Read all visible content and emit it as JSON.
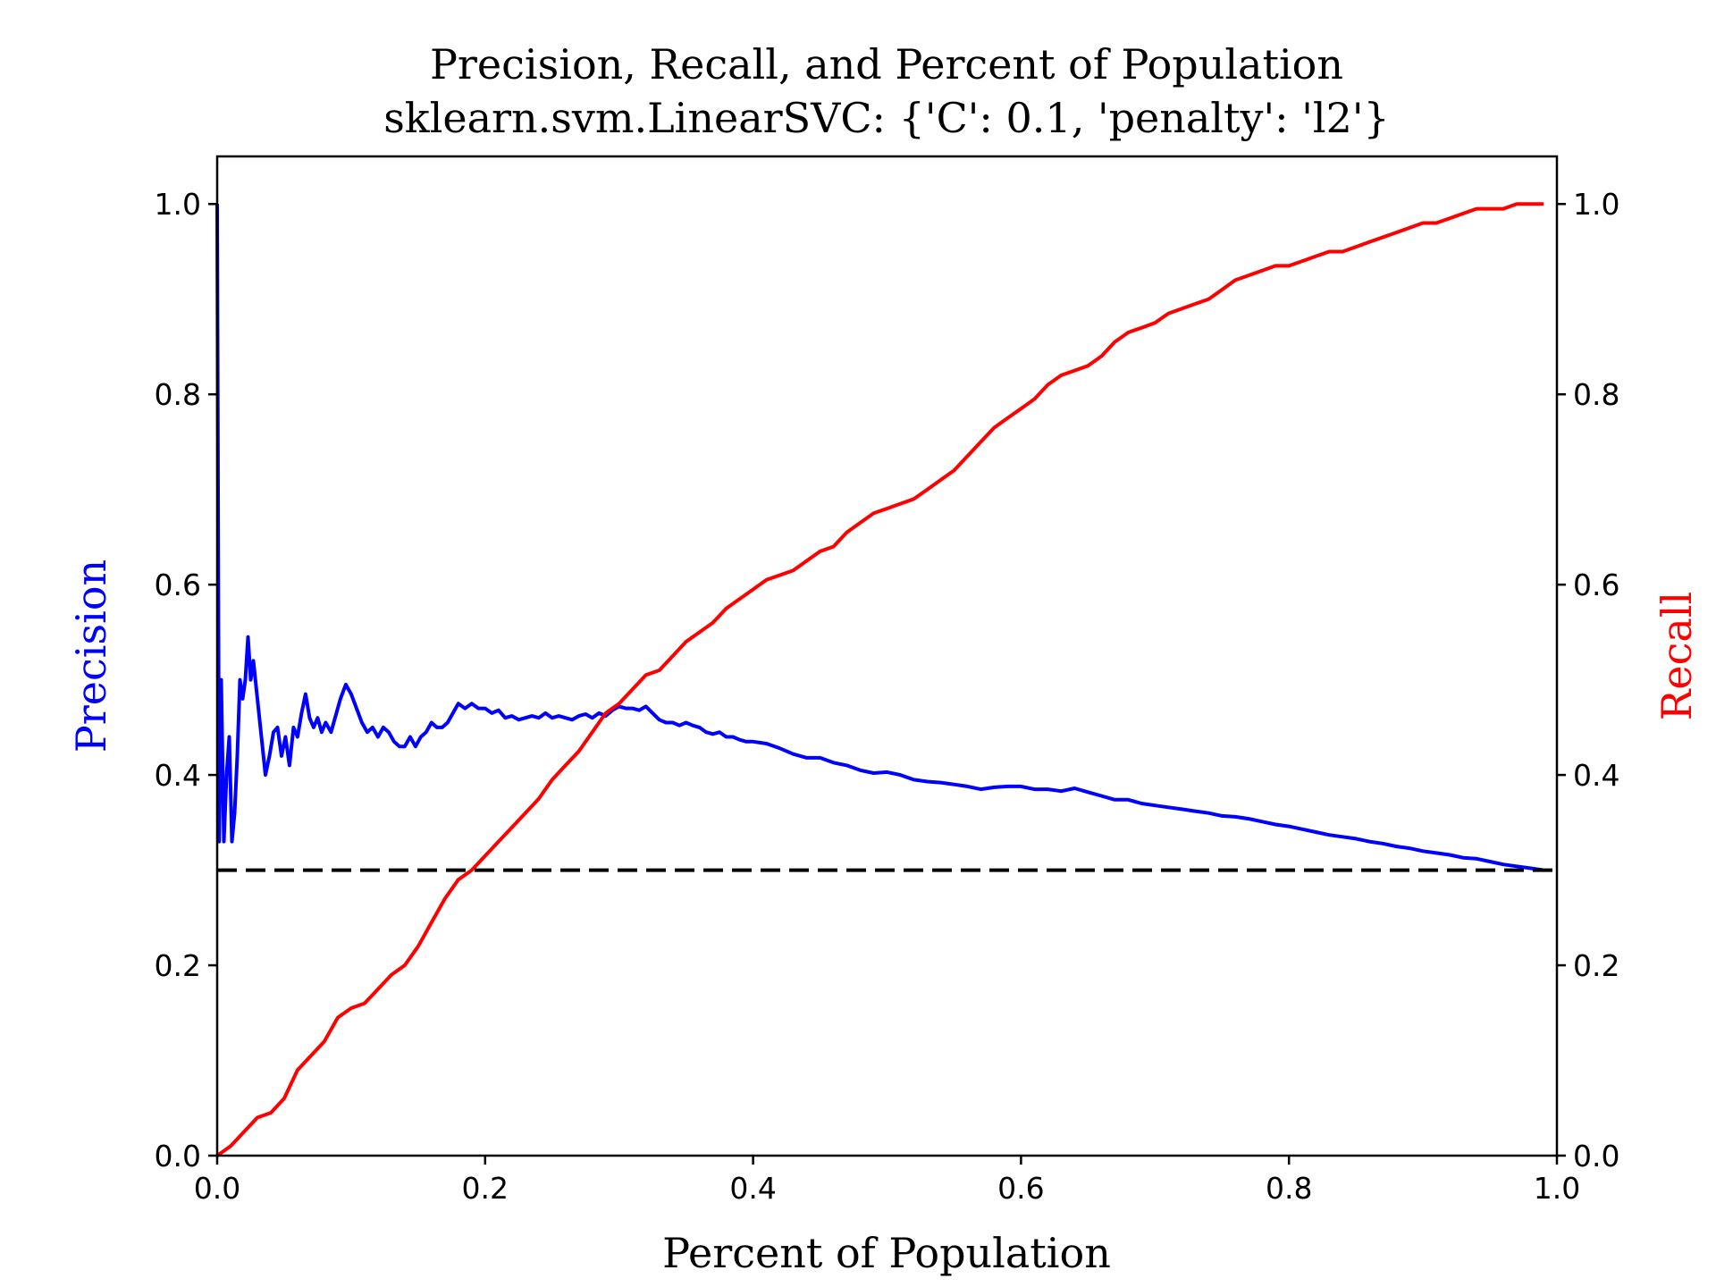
{
  "chart_data": {
    "type": "line",
    "title": "Precision, Recall, and Percent of Population",
    "subtitle": "sklearn.svm.LinearSVC: {'C': 0.1, 'penalty': 'l2'}",
    "xlabel": "Percent of Population",
    "ylabel_left": "Precision",
    "ylabel_right": "Recall",
    "xlim": [
      0,
      1
    ],
    "ylim_left": [
      0,
      1.05
    ],
    "ylim_right": [
      0,
      1.05
    ],
    "x_ticks": [
      "0.0",
      "0.2",
      "0.4",
      "0.6",
      "0.8",
      "1.0"
    ],
    "y_ticks_left": [
      "0.0",
      "0.2",
      "0.4",
      "0.6",
      "0.8",
      "1.0"
    ],
    "y_ticks_right": [
      "0.0",
      "0.2",
      "0.4",
      "0.6",
      "0.8",
      "1.0"
    ],
    "grid": false,
    "colors": {
      "precision": "#0000ff",
      "recall": "#ff0000",
      "baseline": "#000000",
      "axes": "#000000"
    },
    "series": [
      {
        "axis": "left",
        "points": [
          [
            0.0,
            1.0
          ],
          [
            0.0015,
            0.33
          ],
          [
            0.003,
            0.5
          ],
          [
            0.005,
            0.33
          ],
          [
            0.007,
            0.4
          ],
          [
            0.009,
            0.44
          ],
          [
            0.011,
            0.33
          ],
          [
            0.013,
            0.36
          ],
          [
            0.015,
            0.42
          ],
          [
            0.017,
            0.5
          ],
          [
            0.019,
            0.48
          ],
          [
            0.021,
            0.5
          ],
          [
            0.023,
            0.545
          ],
          [
            0.025,
            0.5
          ],
          [
            0.027,
            0.52
          ],
          [
            0.03,
            0.48
          ],
          [
            0.033,
            0.44
          ],
          [
            0.036,
            0.4
          ],
          [
            0.039,
            0.42
          ],
          [
            0.042,
            0.445
          ],
          [
            0.045,
            0.45
          ],
          [
            0.048,
            0.42
          ],
          [
            0.051,
            0.44
          ],
          [
            0.054,
            0.41
          ],
          [
            0.057,
            0.45
          ],
          [
            0.06,
            0.44
          ],
          [
            0.063,
            0.465
          ],
          [
            0.066,
            0.485
          ],
          [
            0.069,
            0.46
          ],
          [
            0.072,
            0.45
          ],
          [
            0.075,
            0.46
          ],
          [
            0.078,
            0.445
          ],
          [
            0.081,
            0.455
          ],
          [
            0.085,
            0.445
          ],
          [
            0.088,
            0.46
          ],
          [
            0.092,
            0.48
          ],
          [
            0.096,
            0.495
          ],
          [
            0.1,
            0.485
          ],
          [
            0.104,
            0.47
          ],
          [
            0.108,
            0.455
          ],
          [
            0.112,
            0.445
          ],
          [
            0.116,
            0.45
          ],
          [
            0.12,
            0.44
          ],
          [
            0.124,
            0.45
          ],
          [
            0.128,
            0.445
          ],
          [
            0.132,
            0.435
          ],
          [
            0.136,
            0.43
          ],
          [
            0.14,
            0.43
          ],
          [
            0.144,
            0.44
          ],
          [
            0.148,
            0.43
          ],
          [
            0.152,
            0.44
          ],
          [
            0.156,
            0.445
          ],
          [
            0.16,
            0.455
          ],
          [
            0.164,
            0.45
          ],
          [
            0.168,
            0.45
          ],
          [
            0.172,
            0.455
          ],
          [
            0.176,
            0.465
          ],
          [
            0.18,
            0.475
          ],
          [
            0.185,
            0.47
          ],
          [
            0.19,
            0.475
          ],
          [
            0.195,
            0.47
          ],
          [
            0.2,
            0.47
          ],
          [
            0.205,
            0.465
          ],
          [
            0.21,
            0.468
          ],
          [
            0.215,
            0.46
          ],
          [
            0.22,
            0.462
          ],
          [
            0.225,
            0.458
          ],
          [
            0.23,
            0.46
          ],
          [
            0.235,
            0.462
          ],
          [
            0.24,
            0.46
          ],
          [
            0.245,
            0.465
          ],
          [
            0.25,
            0.46
          ],
          [
            0.255,
            0.462
          ],
          [
            0.26,
            0.46
          ],
          [
            0.265,
            0.458
          ],
          [
            0.27,
            0.462
          ],
          [
            0.275,
            0.464
          ],
          [
            0.28,
            0.46
          ],
          [
            0.285,
            0.465
          ],
          [
            0.29,
            0.462
          ],
          [
            0.295,
            0.468
          ],
          [
            0.3,
            0.472
          ],
          [
            0.305,
            0.47
          ],
          [
            0.31,
            0.47
          ],
          [
            0.315,
            0.468
          ],
          [
            0.32,
            0.472
          ],
          [
            0.325,
            0.465
          ],
          [
            0.33,
            0.458
          ],
          [
            0.335,
            0.455
          ],
          [
            0.34,
            0.455
          ],
          [
            0.345,
            0.452
          ],
          [
            0.35,
            0.455
          ],
          [
            0.355,
            0.452
          ],
          [
            0.36,
            0.45
          ],
          [
            0.365,
            0.445
          ],
          [
            0.37,
            0.443
          ],
          [
            0.375,
            0.445
          ],
          [
            0.38,
            0.44
          ],
          [
            0.385,
            0.44
          ],
          [
            0.39,
            0.437
          ],
          [
            0.395,
            0.435
          ],
          [
            0.4,
            0.435
          ],
          [
            0.41,
            0.433
          ],
          [
            0.42,
            0.428
          ],
          [
            0.43,
            0.422
          ],
          [
            0.44,
            0.418
          ],
          [
            0.45,
            0.418
          ],
          [
            0.46,
            0.413
          ],
          [
            0.47,
            0.41
          ],
          [
            0.48,
            0.405
          ],
          [
            0.49,
            0.402
          ],
          [
            0.5,
            0.403
          ],
          [
            0.51,
            0.4
          ],
          [
            0.52,
            0.395
          ],
          [
            0.53,
            0.393
          ],
          [
            0.54,
            0.392
          ],
          [
            0.55,
            0.39
          ],
          [
            0.56,
            0.388
          ],
          [
            0.57,
            0.385
          ],
          [
            0.58,
            0.387
          ],
          [
            0.59,
            0.388
          ],
          [
            0.6,
            0.388
          ],
          [
            0.61,
            0.385
          ],
          [
            0.62,
            0.385
          ],
          [
            0.63,
            0.383
          ],
          [
            0.64,
            0.386
          ],
          [
            0.65,
            0.382
          ],
          [
            0.66,
            0.378
          ],
          [
            0.67,
            0.374
          ],
          [
            0.68,
            0.374
          ],
          [
            0.69,
            0.37
          ],
          [
            0.7,
            0.368
          ],
          [
            0.71,
            0.366
          ],
          [
            0.72,
            0.364
          ],
          [
            0.73,
            0.362
          ],
          [
            0.74,
            0.36
          ],
          [
            0.75,
            0.357
          ],
          [
            0.76,
            0.356
          ],
          [
            0.77,
            0.354
          ],
          [
            0.78,
            0.351
          ],
          [
            0.79,
            0.348
          ],
          [
            0.8,
            0.346
          ],
          [
            0.81,
            0.343
          ],
          [
            0.82,
            0.34
          ],
          [
            0.83,
            0.337
          ],
          [
            0.84,
            0.335
          ],
          [
            0.85,
            0.333
          ],
          [
            0.86,
            0.33
          ],
          [
            0.87,
            0.328
          ],
          [
            0.88,
            0.325
          ],
          [
            0.89,
            0.323
          ],
          [
            0.9,
            0.32
          ],
          [
            0.91,
            0.318
          ],
          [
            0.92,
            0.316
          ],
          [
            0.93,
            0.313
          ],
          [
            0.94,
            0.312
          ],
          [
            0.95,
            0.309
          ],
          [
            0.96,
            0.306
          ],
          [
            0.97,
            0.304
          ],
          [
            0.98,
            0.302
          ],
          [
            0.99,
            0.3
          ]
        ]
      },
      {
        "axis": "right",
        "points": [
          [
            0.0,
            0.0
          ],
          [
            0.01,
            0.01
          ],
          [
            0.02,
            0.025
          ],
          [
            0.03,
            0.04
          ],
          [
            0.04,
            0.045
          ],
          [
            0.05,
            0.06
          ],
          [
            0.06,
            0.09
          ],
          [
            0.07,
            0.105
          ],
          [
            0.08,
            0.12
          ],
          [
            0.09,
            0.145
          ],
          [
            0.1,
            0.155
          ],
          [
            0.11,
            0.16
          ],
          [
            0.12,
            0.175
          ],
          [
            0.13,
            0.19
          ],
          [
            0.14,
            0.2
          ],
          [
            0.15,
            0.22
          ],
          [
            0.16,
            0.245
          ],
          [
            0.17,
            0.27
          ],
          [
            0.18,
            0.29
          ],
          [
            0.19,
            0.3
          ],
          [
            0.2,
            0.315
          ],
          [
            0.21,
            0.33
          ],
          [
            0.22,
            0.345
          ],
          [
            0.23,
            0.36
          ],
          [
            0.24,
            0.375
          ],
          [
            0.25,
            0.395
          ],
          [
            0.26,
            0.41
          ],
          [
            0.27,
            0.425
          ],
          [
            0.28,
            0.445
          ],
          [
            0.29,
            0.465
          ],
          [
            0.3,
            0.475
          ],
          [
            0.31,
            0.49
          ],
          [
            0.32,
            0.505
          ],
          [
            0.33,
            0.51
          ],
          [
            0.34,
            0.525
          ],
          [
            0.35,
            0.54
          ],
          [
            0.36,
            0.55
          ],
          [
            0.37,
            0.56
          ],
          [
            0.38,
            0.575
          ],
          [
            0.39,
            0.585
          ],
          [
            0.4,
            0.595
          ],
          [
            0.41,
            0.605
          ],
          [
            0.42,
            0.61
          ],
          [
            0.43,
            0.615
          ],
          [
            0.44,
            0.625
          ],
          [
            0.45,
            0.635
          ],
          [
            0.46,
            0.64
          ],
          [
            0.47,
            0.655
          ],
          [
            0.48,
            0.665
          ],
          [
            0.49,
            0.675
          ],
          [
            0.5,
            0.68
          ],
          [
            0.51,
            0.685
          ],
          [
            0.52,
            0.69
          ],
          [
            0.53,
            0.7
          ],
          [
            0.54,
            0.71
          ],
          [
            0.55,
            0.72
          ],
          [
            0.56,
            0.735
          ],
          [
            0.57,
            0.75
          ],
          [
            0.58,
            0.765
          ],
          [
            0.59,
            0.775
          ],
          [
            0.6,
            0.785
          ],
          [
            0.61,
            0.795
          ],
          [
            0.62,
            0.81
          ],
          [
            0.63,
            0.82
          ],
          [
            0.64,
            0.825
          ],
          [
            0.65,
            0.83
          ],
          [
            0.66,
            0.84
          ],
          [
            0.67,
            0.855
          ],
          [
            0.68,
            0.865
          ],
          [
            0.69,
            0.87
          ],
          [
            0.7,
            0.875
          ],
          [
            0.71,
            0.885
          ],
          [
            0.72,
            0.89
          ],
          [
            0.73,
            0.895
          ],
          [
            0.74,
            0.9
          ],
          [
            0.75,
            0.91
          ],
          [
            0.76,
            0.92
          ],
          [
            0.77,
            0.925
          ],
          [
            0.78,
            0.93
          ],
          [
            0.79,
            0.935
          ],
          [
            0.8,
            0.935
          ],
          [
            0.81,
            0.94
          ],
          [
            0.82,
            0.945
          ],
          [
            0.83,
            0.95
          ],
          [
            0.84,
            0.95
          ],
          [
            0.85,
            0.955
          ],
          [
            0.86,
            0.96
          ],
          [
            0.87,
            0.965
          ],
          [
            0.88,
            0.97
          ],
          [
            0.89,
            0.975
          ],
          [
            0.9,
            0.98
          ],
          [
            0.91,
            0.98
          ],
          [
            0.92,
            0.985
          ],
          [
            0.93,
            0.99
          ],
          [
            0.94,
            0.995
          ],
          [
            0.95,
            0.995
          ],
          [
            0.96,
            0.995
          ],
          [
            0.97,
            1.0
          ],
          [
            0.98,
            1.0
          ],
          [
            0.99,
            1.0
          ]
        ]
      },
      {
        "axis": "left",
        "style": "dashed",
        "points": [
          [
            0.0,
            0.3
          ],
          [
            1.0,
            0.3
          ]
        ]
      }
    ]
  }
}
